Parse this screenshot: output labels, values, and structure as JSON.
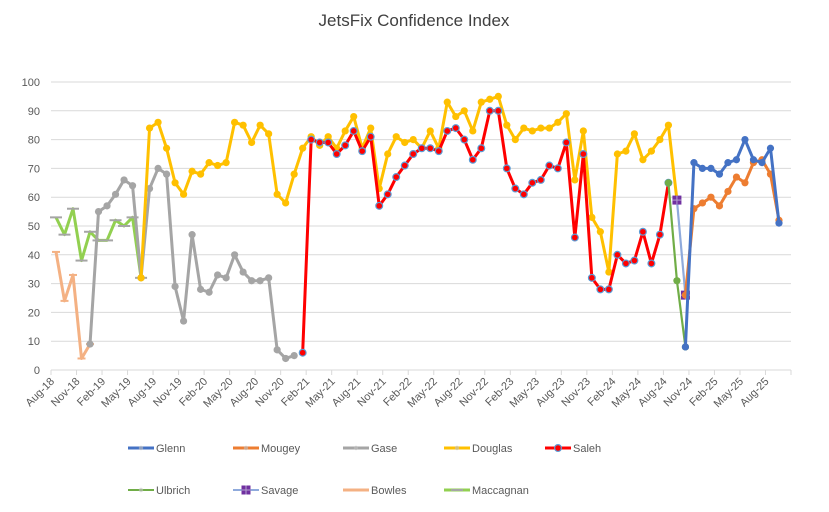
{
  "chart_data": {
    "type": "line",
    "title": "JetsFix Confidence Index",
    "xlabel": "",
    "ylabel": "",
    "ylim": [
      0,
      100
    ],
    "yticks": [
      "0",
      "10",
      "20",
      "30",
      "40",
      "50",
      "60",
      "70",
      "80",
      "90",
      "100"
    ],
    "grid": true,
    "legend": "bottom",
    "x_month_count": 87,
    "x_tick_labels": [
      "Aug-18",
      "Nov-18",
      "Feb-19",
      "May-19",
      "Aug-19",
      "Nov-19",
      "Feb-20",
      "May-20",
      "Aug-20",
      "Nov-20",
      "Feb-21",
      "May-21",
      "Aug-21",
      "Nov-21",
      "Feb-22",
      "May-22",
      "Aug-22",
      "Nov-22",
      "Feb-23",
      "May-23",
      "Aug-23",
      "Nov-23",
      "Feb-24",
      "May-24",
      "Aug-24",
      "Nov-24",
      "Feb-25",
      "May-25",
      "Aug-25"
    ],
    "series": [
      {
        "name": "Glenn",
        "color": "#4472C4",
        "marker": "circle",
        "start": 74,
        "values": [
          8,
          72,
          70,
          70,
          68,
          72,
          73,
          80,
          73,
          72,
          77,
          51
        ]
      },
      {
        "name": "Mougey",
        "color": "#ED7D31",
        "marker": "circle",
        "start": 74,
        "values": [
          26,
          56,
          58,
          60,
          57,
          62,
          67,
          65,
          72,
          73,
          68,
          52
        ]
      },
      {
        "name": "Gase",
        "color": "#A5A5A5",
        "marker": "circle",
        "start": 4,
        "values": [
          9,
          55,
          57,
          61,
          66,
          64,
          32,
          63,
          70,
          68,
          29,
          17,
          47,
          28,
          27,
          33,
          32,
          40,
          34,
          31,
          31,
          32,
          7,
          4,
          5
        ]
      },
      {
        "name": "Douglas",
        "color": "#FFC000",
        "marker": "circle",
        "start": 10,
        "values": [
          32,
          84,
          86,
          77,
          65,
          61,
          69,
          68,
          72,
          71,
          72,
          86,
          85,
          79,
          85,
          82,
          61,
          58,
          68,
          77,
          81,
          78,
          81,
          77,
          83,
          88,
          77,
          84,
          63,
          75,
          81,
          79,
          80,
          77,
          83,
          77,
          93,
          88,
          90,
          83,
          93,
          94,
          95,
          85,
          80,
          84,
          83,
          84,
          84,
          86,
          89,
          66,
          83,
          53,
          48,
          34,
          75,
          76,
          82,
          73,
          76,
          80,
          85,
          59
        ]
      },
      {
        "name": "Saleh",
        "color": "#FF0000",
        "marker": "dot-blue",
        "start": 29,
        "values": [
          6,
          80,
          79,
          79,
          75,
          78,
          83,
          76,
          81,
          57,
          61,
          67,
          71,
          75,
          77,
          77,
          76,
          83,
          84,
          80,
          73,
          77,
          90,
          90,
          70,
          63,
          61,
          65,
          66,
          71,
          70,
          79,
          46,
          75,
          32,
          28,
          28,
          40,
          37,
          38,
          48,
          37,
          47,
          65
        ]
      },
      {
        "name": "Ulbrich",
        "color": "#70AD47",
        "marker": "circle",
        "start": 72,
        "values": [
          65,
          31,
          8
        ]
      },
      {
        "name": "Savage",
        "color": "#8FAADC",
        "marker": "square-purple",
        "start": 73,
        "values": [
          59,
          26
        ]
      },
      {
        "name": "Bowles",
        "color": "#F4B183",
        "marker": "dash",
        "start": 0,
        "values": [
          41,
          24,
          33,
          4,
          9
        ]
      },
      {
        "name": "Maccagnan",
        "color": "#92D050",
        "marker": "dash-gray",
        "start": 0,
        "values": [
          53,
          47,
          56,
          38,
          48,
          45,
          45,
          52,
          50,
          53,
          32
        ]
      }
    ]
  }
}
